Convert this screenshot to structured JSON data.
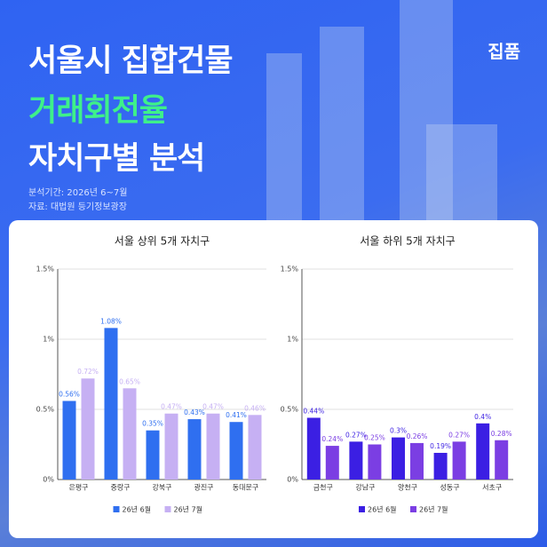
{
  "header": {
    "title_line1": "서울시 집합건물",
    "title_line2": "거래회전율",
    "title_line3": "자치구별 분석",
    "period": "분석기간: 2026년 6~7월",
    "source": "자료: 대법원 등기정보광장",
    "logo": "집품"
  },
  "chart_data": [
    {
      "type": "bar",
      "title": "서울 상위 5개 자치구",
      "categories": [
        "은평구",
        "중랑구",
        "강북구",
        "광진구",
        "동대문구"
      ],
      "series": [
        {
          "name": "26년 6월",
          "color": "#2f6ff0",
          "values": [
            0.56,
            1.08,
            0.35,
            0.43,
            0.41
          ],
          "value_labels": [
            "0.56%",
            "1.08%",
            "0.35%",
            "0.43%",
            "0.41%"
          ]
        },
        {
          "name": "26년 7월",
          "color": "#c6b0f3",
          "values": [
            0.72,
            0.65,
            0.47,
            0.47,
            0.46
          ],
          "value_labels": [
            "0.72%",
            "0.65%",
            "0.47%",
            "0.47%",
            "0.46%"
          ]
        }
      ],
      "ylim": [
        0,
        1.5
      ],
      "yticks": [
        {
          "value": 0,
          "label": "0%"
        },
        {
          "value": 0.5,
          "label": "0.5%"
        },
        {
          "value": 1,
          "label": "1%"
        },
        {
          "value": 1.5,
          "label": "1.5%"
        }
      ],
      "grid": true
    },
    {
      "type": "bar",
      "title": "서울 하위 5개 자치구",
      "categories": [
        "금천구",
        "강남구",
        "양천구",
        "성동구",
        "서초구"
      ],
      "series": [
        {
          "name": "26년 6월",
          "color": "#3b1fe3",
          "values": [
            0.44,
            0.27,
            0.3,
            0.19,
            0.4
          ],
          "value_labels": [
            "0.44%",
            "0.27%",
            "0.3%",
            "0.19%",
            "0.4%"
          ]
        },
        {
          "name": "26년 7월",
          "color": "#7b3ee3",
          "values": [
            0.24,
            0.25,
            0.26,
            0.27,
            0.28
          ],
          "value_labels": [
            "0.24%",
            "0.25%",
            "0.26%",
            "0.27%",
            "0.28%"
          ]
        }
      ],
      "ylim": [
        0,
        1.5
      ],
      "yticks": [
        {
          "value": 0,
          "label": "0%"
        },
        {
          "value": 0.5,
          "label": "0.5%"
        },
        {
          "value": 1,
          "label": "1%"
        },
        {
          "value": 1.5,
          "label": "1.5%"
        }
      ],
      "grid": true
    }
  ]
}
